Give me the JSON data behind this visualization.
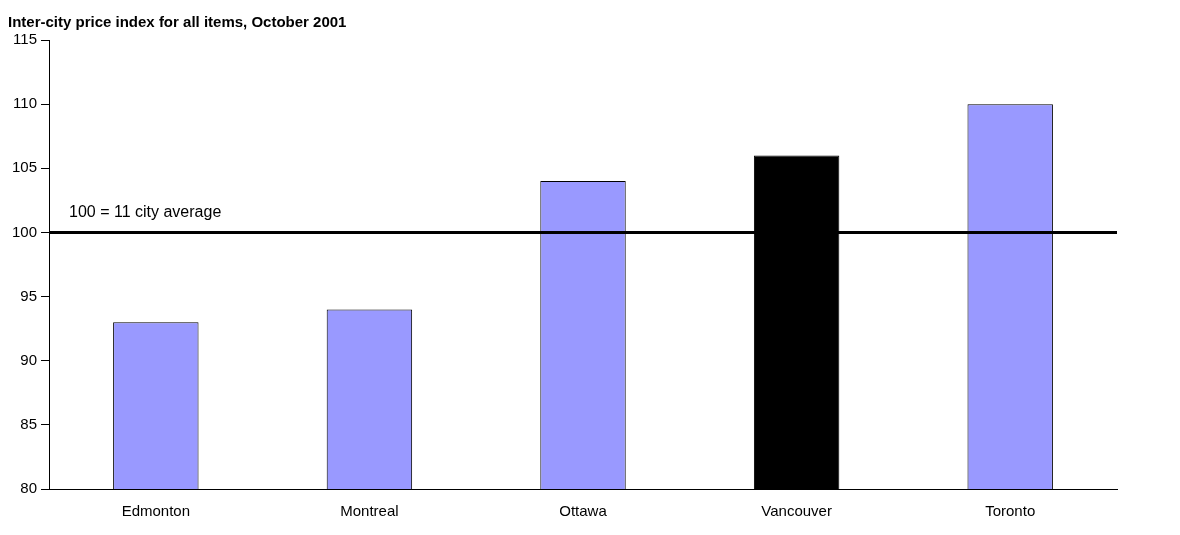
{
  "chart_data": {
    "type": "bar",
    "title": "Inter-city price index for all items, October 2001",
    "categories": [
      "Edmonton",
      "Montreal",
      "Ottawa",
      "Vancouver",
      "Toronto"
    ],
    "values": [
      93,
      94,
      104,
      106,
      110
    ],
    "colors": [
      "#9999ff",
      "#9999ff",
      "#9999ff",
      "#000000",
      "#9999ff"
    ],
    "ylim": [
      80,
      115
    ],
    "yticks": [
      80,
      85,
      90,
      95,
      100,
      105,
      110,
      115
    ],
    "grid": false,
    "legend": false,
    "ref_lines": [
      {
        "axis": "y",
        "value": 100,
        "label": "100 = 11 city average",
        "color": "#000000"
      }
    ]
  }
}
